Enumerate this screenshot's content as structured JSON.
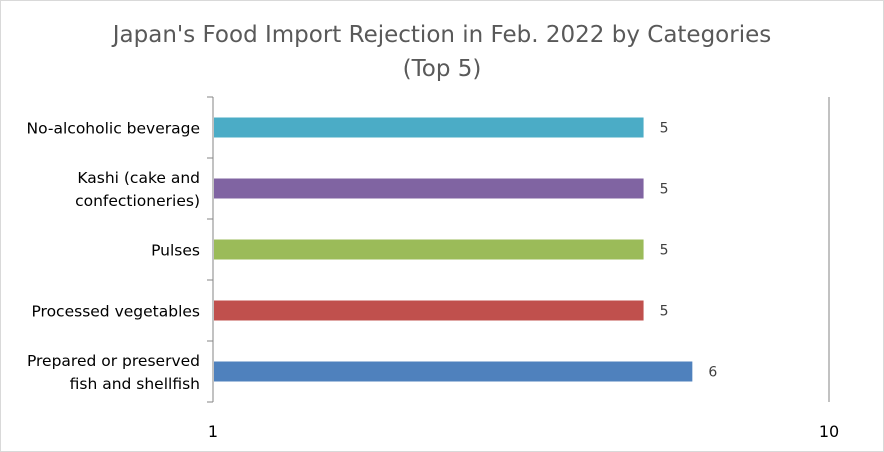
{
  "chart_data": {
    "type": "bar",
    "orientation": "horizontal",
    "title": "Japan's Food Import Rejection in Feb. 2022 by Categories",
    "subtitle": "(Top 5)",
    "categories": [
      [
        "No-alcoholic beverage"
      ],
      [
        "Kashi (cake and",
        "confectioneries)"
      ],
      [
        "Pulses"
      ],
      [
        "Processed vegetables"
      ],
      [
        "Prepared or preserved",
        "fish and shellfish"
      ]
    ],
    "values": [
      5,
      5,
      5,
      5,
      6
    ],
    "data_labels": [
      "5",
      "5",
      "5",
      "5",
      "6"
    ],
    "colors": [
      "#4bacc6",
      "#8064a2",
      "#9bbb59",
      "#c0504d",
      "#4f81bd"
    ],
    "xaxis": {
      "scale": "log",
      "min": 1,
      "max": 10,
      "tick_labels": [
        "1",
        "10"
      ]
    },
    "grid": false,
    "legend": "none"
  }
}
